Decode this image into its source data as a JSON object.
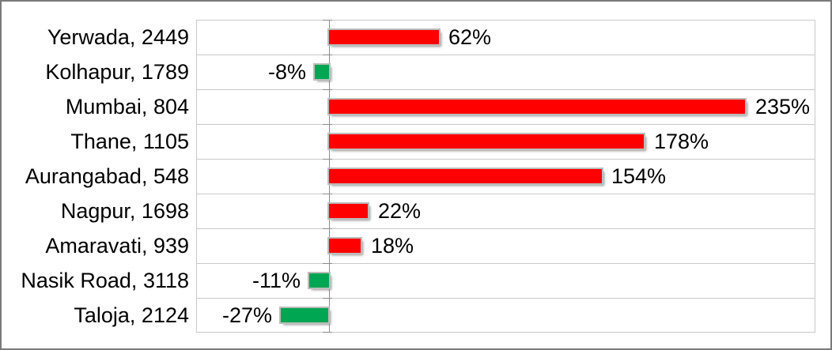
{
  "chart_data": {
    "type": "bar",
    "orientation": "horizontal",
    "title": "",
    "categories": [
      "Yerwada, 2449",
      "Kolhapur, 1789",
      "Mumbai, 804",
      "Thane, 1105",
      "Aurangabad, 548",
      "Nagpur, 1698",
      "Amaravati, 939",
      "Nasik Road, 3118",
      "Taloja, 2124"
    ],
    "values": [
      62,
      -8,
      235,
      178,
      154,
      22,
      18,
      -11,
      -27
    ],
    "labels": [
      "62%",
      "-8%",
      "235%",
      "178%",
      "154%",
      "22%",
      "18%",
      "-11%",
      "-27%"
    ],
    "xlim": [
      -75,
      275
    ],
    "legend": "none",
    "grid": "horizontal-category-separators",
    "colors": {
      "positive_bar": "#ff0000",
      "negative_bar": "#00a651"
    }
  },
  "frame": {
    "background": "#ffffff",
    "border_color": "#7a7a7a",
    "gridline_color": "#c9c9c9",
    "axis_line_color": "#8c8c8c",
    "text_color": "#000000"
  }
}
